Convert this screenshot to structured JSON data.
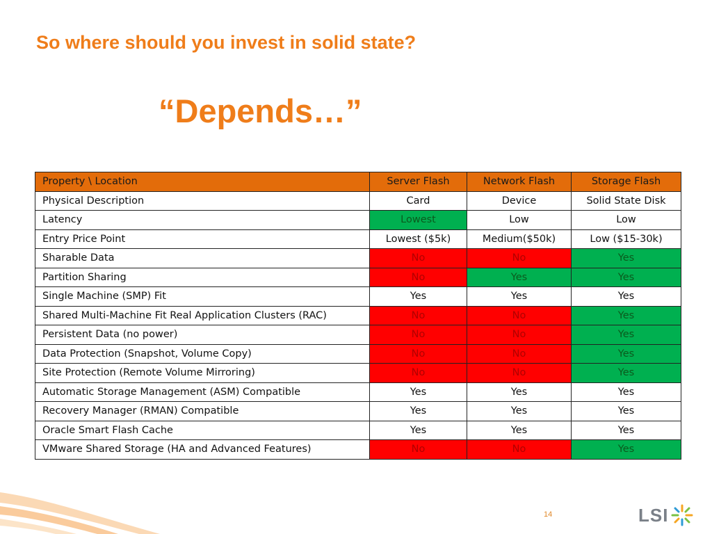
{
  "slide": {
    "title": "So where should you invest in solid state?",
    "subtitle": "“Depends…”",
    "page_number": "14"
  },
  "logo": {
    "text": "LSI",
    "icon": "lsi-starburst-icon"
  },
  "colors": {
    "accent_orange": "#ef7d1a",
    "header_fill": "#e36c0a",
    "bad_fill": "#ff0000",
    "good_fill": "#00b050"
  },
  "table": {
    "headers": [
      "Property \\ Location",
      "Server Flash",
      "Network Flash",
      "Storage Flash"
    ],
    "rows": [
      {
        "property": "Physical Description",
        "values": [
          "Card",
          "Device",
          "Solid State Disk"
        ],
        "status": [
          "none",
          "none",
          "none"
        ]
      },
      {
        "property": "Latency",
        "values": [
          "Lowest",
          "Low",
          "Low"
        ],
        "status": [
          "good",
          "none",
          "none"
        ]
      },
      {
        "property": "Entry Price Point",
        "values": [
          "Lowest ($5k)",
          "Medium($50k)",
          "Low ($15-30k)"
        ],
        "status": [
          "none",
          "none",
          "none"
        ]
      },
      {
        "property": "Sharable Data",
        "values": [
          "No",
          "No",
          "Yes"
        ],
        "status": [
          "bad",
          "bad",
          "good"
        ]
      },
      {
        "property": "Partition Sharing",
        "values": [
          "No",
          "Yes",
          "Yes"
        ],
        "status": [
          "bad",
          "good",
          "good"
        ]
      },
      {
        "property": "Single Machine (SMP) Fit",
        "values": [
          "Yes",
          "Yes",
          "Yes"
        ],
        "status": [
          "none",
          "none",
          "none"
        ]
      },
      {
        "property": "Shared Multi-Machine Fit Real Application Clusters (RAC)",
        "values": [
          "No",
          "No",
          "Yes"
        ],
        "status": [
          "bad",
          "bad",
          "good"
        ]
      },
      {
        "property": "Persistent Data (no power)",
        "values": [
          "No",
          "No",
          "Yes"
        ],
        "status": [
          "bad",
          "bad",
          "good"
        ]
      },
      {
        "property": "Data Protection (Snapshot, Volume Copy)",
        "values": [
          "No",
          "No",
          "Yes"
        ],
        "status": [
          "bad",
          "bad",
          "good"
        ]
      },
      {
        "property": "Site Protection (Remote Volume Mirroring)",
        "values": [
          "No",
          "No",
          "Yes"
        ],
        "status": [
          "bad",
          "bad",
          "good"
        ]
      },
      {
        "property": "Automatic Storage Management (ASM) Compatible",
        "values": [
          "Yes",
          "Yes",
          "Yes"
        ],
        "status": [
          "none",
          "none",
          "none"
        ]
      },
      {
        "property": "Recovery Manager (RMAN) Compatible",
        "values": [
          "Yes",
          "Yes",
          "Yes"
        ],
        "status": [
          "none",
          "none",
          "none"
        ]
      },
      {
        "property": "Oracle Smart Flash Cache",
        "values": [
          "Yes",
          "Yes",
          "Yes"
        ],
        "status": [
          "none",
          "none",
          "none"
        ]
      },
      {
        "property": "VMware Shared Storage (HA and Advanced Features)",
        "values": [
          "No",
          "No",
          "Yes"
        ],
        "status": [
          "bad",
          "bad",
          "good"
        ]
      }
    ]
  }
}
